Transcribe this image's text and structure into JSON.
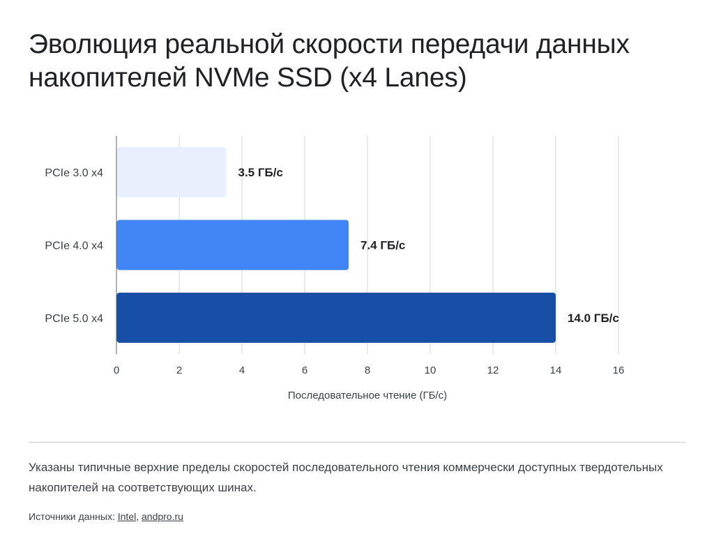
{
  "title": "Эволюция реальной скорости передачи данных накопителей NVMe SSD (x4 Lanes)",
  "chart_data": {
    "type": "bar",
    "orientation": "horizontal",
    "categories": [
      "PCIe 3.0 x4",
      "PCIe 4.0 x4",
      "PCIe 5.0 x4"
    ],
    "values": [
      3.5,
      7.4,
      14.0
    ],
    "data_labels": [
      "3.5 ГБ/с",
      "7.4 ГБ/с",
      "14.0 ГБ/с"
    ],
    "colors": [
      "#e8f0fe",
      "#4285f4",
      "#174ea6"
    ],
    "xlabel": "Последовательное чтение (ГБ/с)",
    "ylabel": "",
    "xlim": [
      0,
      16
    ],
    "xticks": [
      "0",
      "2",
      "4",
      "6",
      "8",
      "10",
      "12",
      "14",
      "16"
    ],
    "grid": true,
    "legend": "none"
  },
  "note": "Указаны типичные верхние пределы скоростей последовательного чтения коммерчески доступных твердотельных накопителей на соответствующих шинах.",
  "sources": {
    "prefix": "Источники данных: ",
    "separator": ", ",
    "links": [
      "Intel",
      "andpro.ru"
    ]
  }
}
